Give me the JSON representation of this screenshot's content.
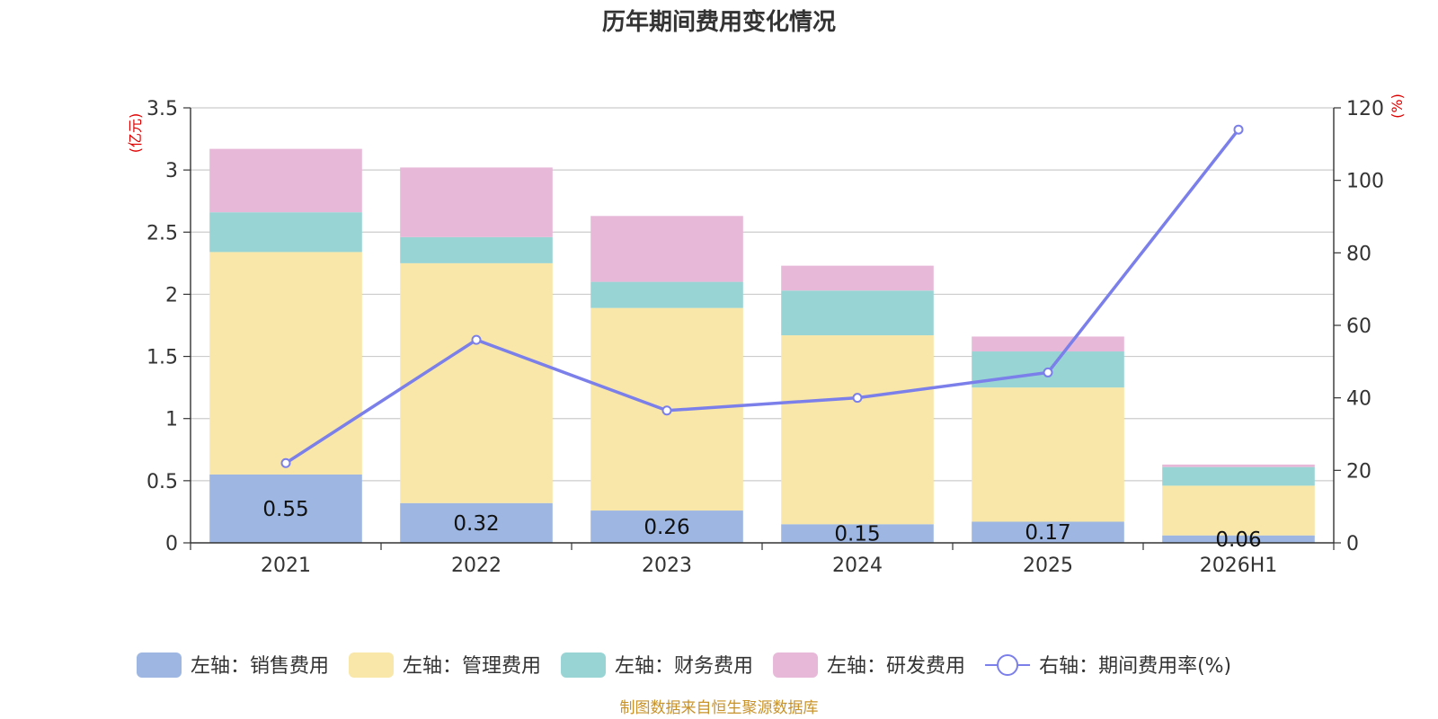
{
  "chart_data": {
    "type": "bar",
    "title": "历年期间费用变化情况",
    "categories": [
      "2021",
      "2022",
      "2023",
      "2024",
      "2025",
      "2026H1"
    ],
    "left_axis": {
      "unit": "(亿元)",
      "ylim": [
        0,
        3.5
      ],
      "ticks": [
        "0",
        "0.5",
        "1",
        "1.5",
        "2",
        "2.5",
        "3",
        "3.5"
      ]
    },
    "right_axis": {
      "unit": "(%)",
      "ylim": [
        0,
        120
      ],
      "ticks": [
        "0",
        "20",
        "40",
        "60",
        "80",
        "100",
        "120"
      ]
    },
    "grid": true,
    "legend_position": "bottom",
    "series": [
      {
        "name": "左轴：销售费用",
        "type": "bar",
        "color": "#9db7e2",
        "values": [
          0.55,
          0.32,
          0.26,
          0.15,
          0.17,
          0.06
        ],
        "labels": [
          "0.55",
          "0.32",
          "0.26",
          "0.15",
          "0.17",
          "0.06"
        ]
      },
      {
        "name": "左轴：管理费用",
        "type": "bar",
        "color": "#f8e7a8",
        "values": [
          1.79,
          1.93,
          1.63,
          1.52,
          1.08,
          0.4
        ]
      },
      {
        "name": "左轴：财务费用",
        "type": "bar",
        "color": "#98d4d4",
        "values": [
          0.32,
          0.21,
          0.21,
          0.36,
          0.29,
          0.15
        ]
      },
      {
        "name": "左轴：研发费用",
        "type": "bar",
        "color": "#e7b8d8",
        "values": [
          0.51,
          0.56,
          0.53,
          0.2,
          0.12,
          0.02
        ]
      },
      {
        "name": "右轴：期间费用率(%)",
        "type": "line",
        "color": "#7b7fea",
        "values": [
          22,
          56,
          36.5,
          40,
          47,
          114
        ]
      }
    ]
  },
  "source_note": "制图数据来自恒生聚源数据库"
}
